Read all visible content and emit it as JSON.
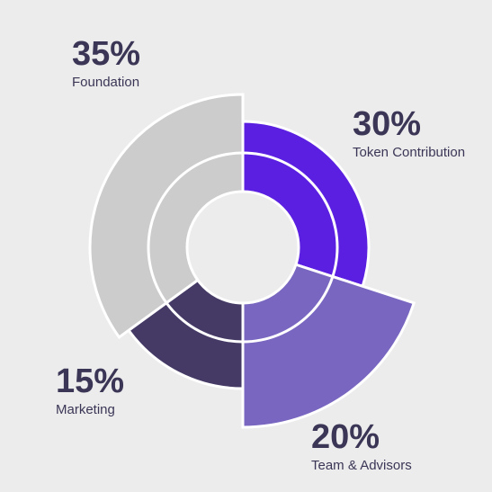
{
  "chart_data": {
    "type": "pie",
    "categories": [
      "Token Contribution",
      "Team & Advisors",
      "Marketing",
      "Foundation"
    ],
    "values": [
      30,
      20,
      15,
      35
    ],
    "value_labels": [
      "30%",
      "20%",
      "15%",
      "35%"
    ],
    "colors": [
      "#5a1fe0",
      "#7866c0",
      "#453a66",
      "#cccccc"
    ]
  }
}
